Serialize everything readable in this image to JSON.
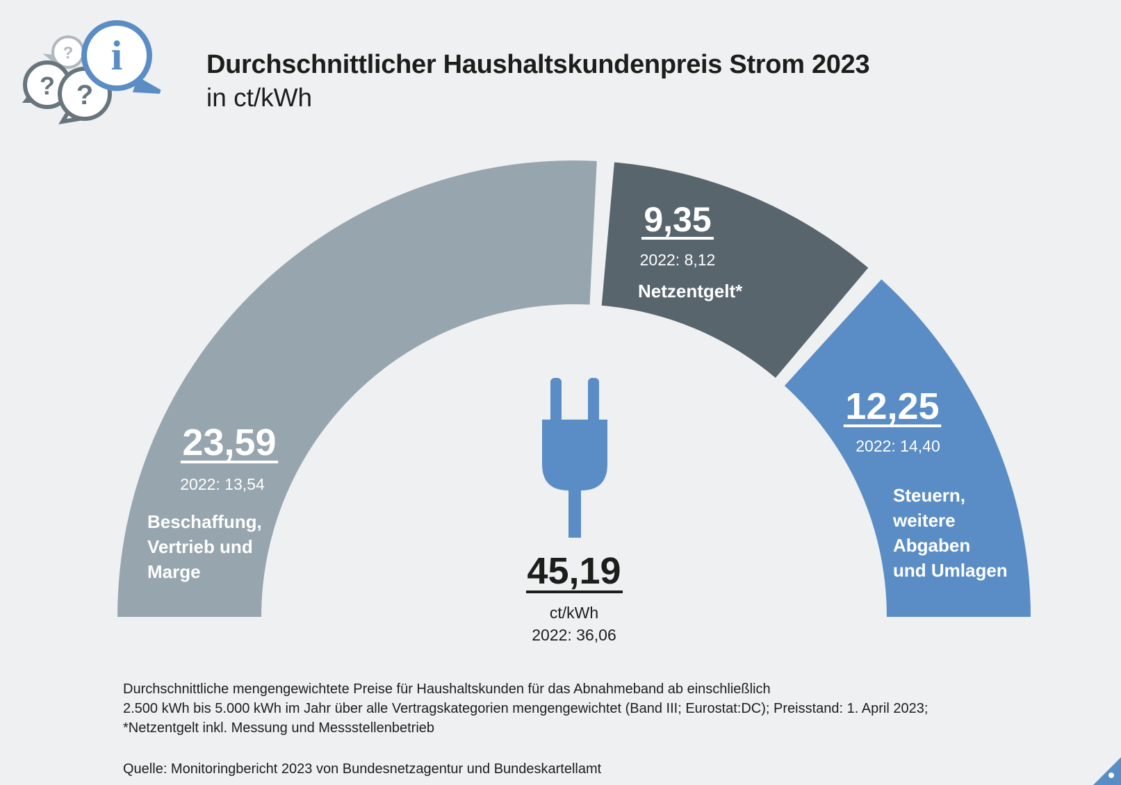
{
  "header": {
    "title": "Durchschnittlicher Haushaltskundenpreis Strom 2023",
    "subtitle": "in ct/kWh"
  },
  "logo": {
    "icon": "info-speech-bubbles-icon",
    "glyph_info": "i",
    "glyph_question": "?"
  },
  "colors": {
    "background": "#eff0f2",
    "procurement": "#97a5ae",
    "network": "#58656d",
    "taxes": "#5a8dc5",
    "plug": "#5a8dc5",
    "text_dark": "#1d1d1b",
    "text_light": "#ffffff"
  },
  "chart_data": {
    "type": "pie",
    "shape": "semicircle-donut",
    "title": "Durchschnittlicher Haushaltskundenpreis Strom 2023",
    "unit": "ct/kWh",
    "segments": [
      {
        "label_lines": [
          "Beschaffung,",
          "Vertrieb und",
          "Marge"
        ],
        "value": 23.59,
        "value_label": "23,59",
        "prev_label": "2022: 13,54",
        "color": "#97a5ae"
      },
      {
        "label_lines": [
          "Netzentgelt*"
        ],
        "value": 9.35,
        "value_label": "9,35",
        "prev_label": "2022: 8,12",
        "color": "#58656d"
      },
      {
        "label_lines": [
          "Steuern,",
          "weitere",
          "Abgaben",
          "und Umlagen"
        ],
        "value": 12.25,
        "value_label": "12,25",
        "prev_label": "2022: 14,40",
        "color": "#5a8dc5"
      }
    ],
    "total": {
      "value": 45.19,
      "value_label": "45,19",
      "unit_label": "ct/kWh",
      "prev_label": "2022: 36,06"
    }
  },
  "footnote": {
    "lines": [
      "Durchschnittliche mengengewichtete Preise für Haushaltskunden für das Abnahmeband ab einschließlich",
      "2.500 kWh bis 5.000 kWh im Jahr über alle Vertragskategorien mengengewichtet (Band III; Eurostat:DC); Preisstand: 1. April 2023;",
      "*Netzentgelt inkl. Messung und Messstellenbetrieb"
    ],
    "source": "Quelle: Monitoringbericht 2023 von Bundesnetzagentur und Bundeskartellamt"
  }
}
